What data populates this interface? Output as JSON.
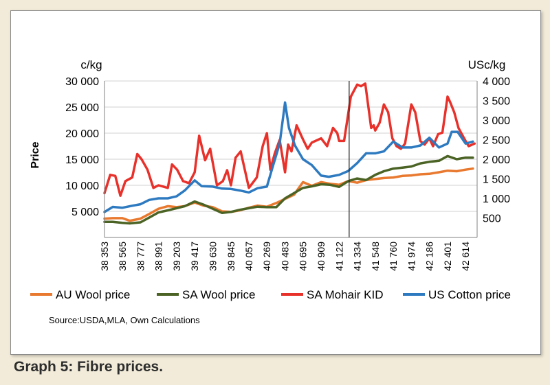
{
  "caption": "Graph 5: Fibre prices.",
  "chart_data": {
    "type": "line",
    "ylabel": "Price",
    "left_axis_unit": "c/kg",
    "right_axis_unit": "USc/kg",
    "source": "Source:USDA,MLA, Own Calculations",
    "ylim_left": [
      0,
      30000
    ],
    "ylim_right": [
      0,
      4000
    ],
    "yticks_left": [
      5000,
      10000,
      15000,
      20000,
      25000,
      30000
    ],
    "yticks_left_labels": [
      "5 000",
      "10 000",
      "15 000",
      "20 000",
      "25 000",
      "30 000"
    ],
    "yticks_right": [
      500,
      1000,
      1500,
      2000,
      2500,
      3000,
      3500,
      4000
    ],
    "yticks_right_labels": [
      "500",
      "1 000",
      "1 500",
      "2 000",
      "2 500",
      "3 000",
      "3 500",
      "4 000"
    ],
    "xlim": [
      38353,
      42750
    ],
    "xticks": [
      38353,
      38565,
      38777,
      38991,
      39203,
      39417,
      39630,
      39845,
      40057,
      40269,
      40483,
      40695,
      40909,
      41122,
      41334,
      41548,
      41760,
      41974,
      42186,
      42401,
      42614
    ],
    "xtick_labels": [
      "38 353",
      "38 565",
      "38 777",
      "38 991",
      "39 203",
      "39 417",
      "39 630",
      "39 845",
      "40 057",
      "40 269",
      "40 483",
      "40 695",
      "40 909",
      "41 122",
      "41 334",
      "41 548",
      "41 760",
      "41 974",
      "42 186",
      "42 401",
      "42 614"
    ],
    "vline_x": 41240,
    "grid": true,
    "legend_position": "bottom",
    "series": [
      {
        "name": "AU Wool price",
        "axis": "left",
        "color": "#e8792f",
        "x": [
          38353,
          38450,
          38565,
          38650,
          38777,
          38880,
          38991,
          39100,
          39203,
          39300,
          39417,
          39520,
          39630,
          39740,
          39845,
          39950,
          40057,
          40160,
          40269,
          40380,
          40483,
          40590,
          40695,
          40800,
          40909,
          41010,
          41122,
          41230,
          41334,
          41440,
          41548,
          41650,
          41760,
          41870,
          41974,
          42080,
          42186,
          42300,
          42401,
          42510,
          42614,
          42700
        ],
        "y": [
          3600,
          3700,
          3700,
          3200,
          3600,
          4500,
          5500,
          6000,
          5800,
          6000,
          6700,
          6100,
          5800,
          5000,
          4900,
          5200,
          5700,
          6100,
          5900,
          6600,
          7400,
          8200,
          10600,
          9900,
          10600,
          10300,
          10100,
          10800,
          10500,
          11000,
          11200,
          11400,
          11500,
          11800,
          11900,
          12100,
          12200,
          12500,
          12800,
          12700,
          13000,
          13200
        ]
      },
      {
        "name": "SA Wool price",
        "axis": "left",
        "color": "#4b6324",
        "x": [
          38353,
          38450,
          38565,
          38650,
          38777,
          38880,
          38991,
          39100,
          39203,
          39300,
          39417,
          39520,
          39630,
          39740,
          39845,
          39950,
          40057,
          40160,
          40269,
          40380,
          40483,
          40590,
          40695,
          40800,
          40909,
          41010,
          41122,
          41230,
          41334,
          41440,
          41548,
          41650,
          41760,
          41870,
          41974,
          42080,
          42186,
          42300,
          42401,
          42510,
          42614,
          42700
        ],
        "y": [
          3000,
          3000,
          2800,
          2700,
          2900,
          3800,
          4800,
          5200,
          5600,
          6000,
          6900,
          6300,
          5500,
          4700,
          4900,
          5300,
          5600,
          5900,
          5800,
          5800,
          7500,
          8500,
          9500,
          9800,
          10200,
          10100,
          9700,
          10800,
          11300,
          11000,
          12000,
          12700,
          13200,
          13400,
          13600,
          14200,
          14500,
          14700,
          15600,
          15000,
          15300,
          15300
        ]
      },
      {
        "name": "SA Mohair KID",
        "axis": "left",
        "color": "#e8312a",
        "x": [
          38353,
          38420,
          38480,
          38540,
          38600,
          38680,
          38740,
          38790,
          38860,
          38930,
          38991,
          39100,
          39150,
          39210,
          39280,
          39350,
          39417,
          39470,
          39540,
          39600,
          39680,
          39750,
          39800,
          39845,
          39900,
          39960,
          40057,
          40150,
          40220,
          40269,
          40310,
          40360,
          40420,
          40483,
          40520,
          40560,
          40620,
          40695,
          40750,
          40800,
          40909,
          40980,
          41050,
          41100,
          41122,
          41180,
          41260,
          41334,
          41380,
          41430,
          41500,
          41530,
          41548,
          41600,
          41650,
          41700,
          41750,
          41800,
          41850,
          41900,
          41974,
          42020,
          42080,
          42130,
          42186,
          42230,
          42290,
          42340,
          42401,
          42430,
          42480,
          42530,
          42580,
          42614,
          42650,
          42720
        ],
        "y": [
          8500,
          12000,
          11800,
          8000,
          10800,
          11500,
          16000,
          15000,
          13000,
          9500,
          10000,
          9500,
          14000,
          13000,
          10800,
          10400,
          12500,
          19500,
          14800,
          17000,
          10000,
          10800,
          12900,
          10000,
          15300,
          16500,
          9500,
          11500,
          17500,
          20000,
          13000,
          16000,
          18700,
          12500,
          17800,
          16500,
          21500,
          18800,
          17000,
          18200,
          19000,
          17500,
          21000,
          20000,
          18500,
          18500,
          27000,
          29300,
          29000,
          29500,
          21000,
          21500,
          20500,
          22000,
          25500,
          24000,
          19000,
          17500,
          17000,
          18000,
          25500,
          24000,
          18500,
          17800,
          19000,
          17500,
          19800,
          20100,
          27000,
          26000,
          24000,
          21000,
          19500,
          18500,
          17500,
          18000
        ]
      },
      {
        "name": "US Cotton price",
        "axis": "right",
        "color": "#2e7ac0",
        "x": [
          38353,
          38450,
          38565,
          38680,
          38777,
          38880,
          38991,
          39100,
          39203,
          39300,
          39417,
          39500,
          39630,
          39740,
          39845,
          39950,
          40057,
          40160,
          40269,
          40330,
          40420,
          40483,
          40530,
          40600,
          40695,
          40800,
          40909,
          41000,
          41122,
          41230,
          41334,
          41440,
          41548,
          41650,
          41760,
          41870,
          41974,
          42080,
          42186,
          42300,
          42401,
          42450,
          42520,
          42614,
          42700
        ],
        "y": [
          650,
          780,
          760,
          810,
          850,
          960,
          1000,
          1000,
          1050,
          1200,
          1460,
          1310,
          1300,
          1250,
          1240,
          1200,
          1150,
          1260,
          1300,
          1750,
          2400,
          3450,
          2800,
          2350,
          2000,
          1850,
          1580,
          1550,
          1600,
          1700,
          1900,
          2150,
          2150,
          2200,
          2450,
          2300,
          2300,
          2350,
          2550,
          2300,
          2400,
          2700,
          2700,
          2400,
          2450
        ]
      }
    ]
  }
}
